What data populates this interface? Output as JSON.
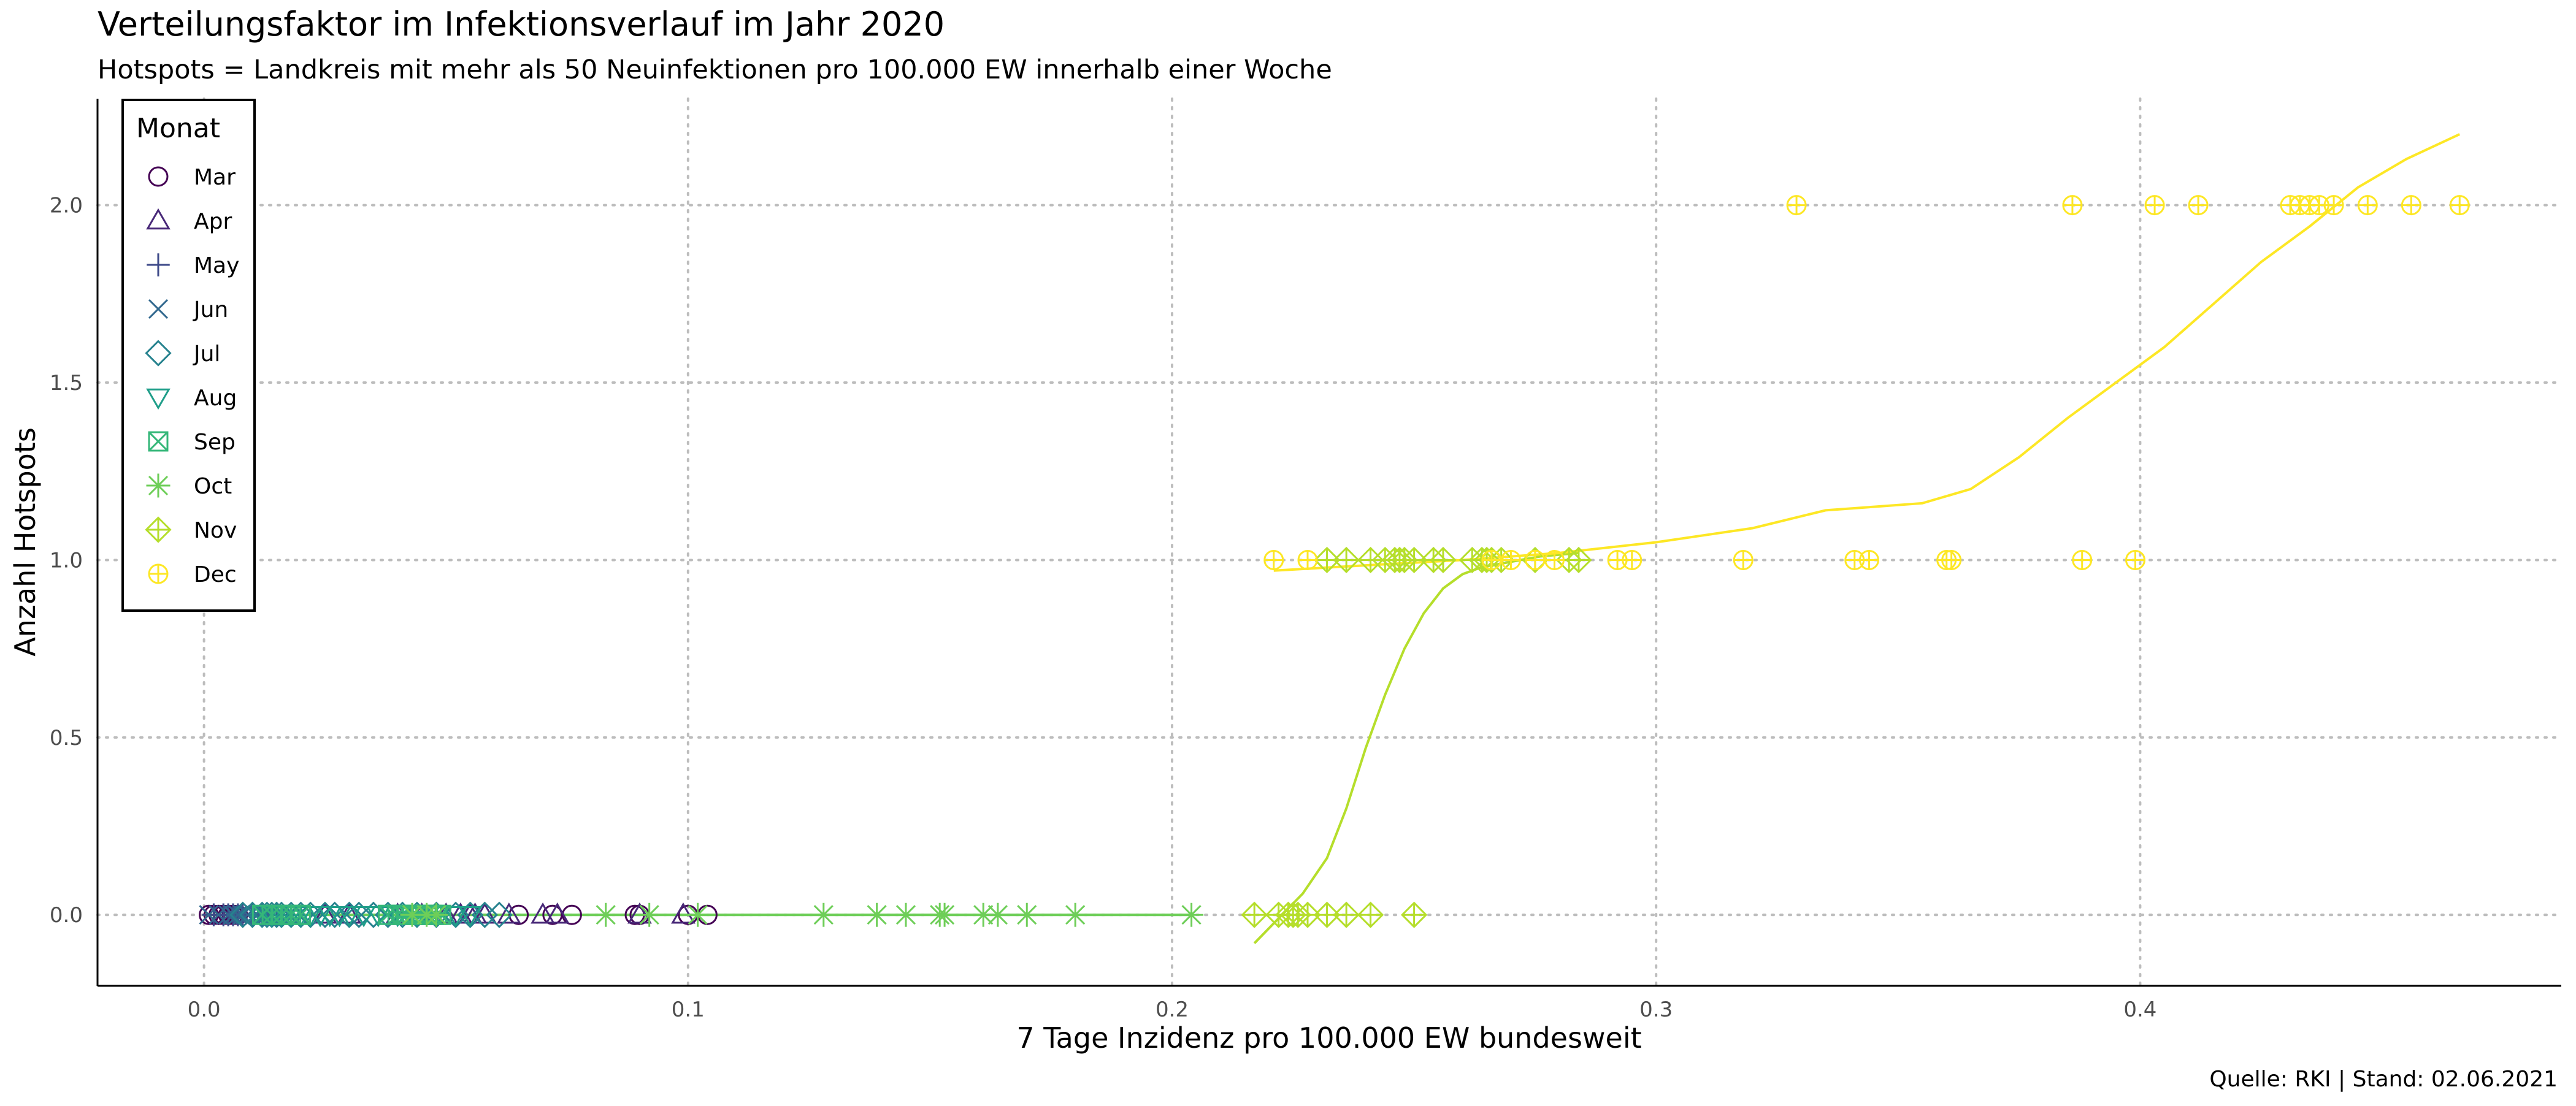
{
  "chart_data": {
    "type": "scatter",
    "title": "Verteilungsfaktor im Infektionsverlauf im Jahr 2020",
    "subtitle": "Hotspots = Landkreis mit mehr als 50 Neuinfektionen pro 100.000 EW innerhalb einer Woche",
    "xlabel": "7 Tage Inzidenz pro 100.000 EW bundesweit",
    "ylabel": "Anzahl Hotspots",
    "caption": "Quelle: RKI | Stand: 02.06.2021",
    "xlim": [
      -0.022,
      0.487
    ],
    "ylim": [
      -0.2,
      2.3
    ],
    "x_ticks": [
      {
        "v": 0.0,
        "label": "0.0"
      },
      {
        "v": 0.1,
        "label": "0.1"
      },
      {
        "v": 0.2,
        "label": "0.2"
      },
      {
        "v": 0.3,
        "label": "0.3"
      },
      {
        "v": 0.4,
        "label": "0.4"
      }
    ],
    "y_ticks": [
      {
        "v": 0.0,
        "label": "0.0"
      },
      {
        "v": 0.5,
        "label": "0.5"
      },
      {
        "v": 1.0,
        "label": "1.0"
      },
      {
        "v": 1.5,
        "label": "1.5"
      },
      {
        "v": 2.0,
        "label": "2.0"
      }
    ],
    "grid": "major, dotted",
    "legend": {
      "title": "Monat",
      "placement": "top-left"
    },
    "series": [
      {
        "name": "Mar",
        "shape": "circle",
        "color": "#440154",
        "points": [
          [
            0.001,
            0
          ],
          [
            0.002,
            0
          ],
          [
            0.003,
            0
          ],
          [
            0.004,
            0
          ],
          [
            0.005,
            0
          ],
          [
            0.006,
            0
          ],
          [
            0.007,
            0
          ],
          [
            0.065,
            0
          ],
          [
            0.072,
            0
          ],
          [
            0.076,
            0
          ],
          [
            0.089,
            0
          ],
          [
            0.09,
            0
          ],
          [
            0.1,
            0
          ],
          [
            0.104,
            0
          ]
        ]
      },
      {
        "name": "Apr",
        "shape": "triangle",
        "color": "#482878",
        "points": [
          [
            0.025,
            0
          ],
          [
            0.03,
            0
          ],
          [
            0.04,
            0
          ],
          [
            0.045,
            0
          ],
          [
            0.05,
            0
          ],
          [
            0.053,
            0
          ],
          [
            0.055,
            0
          ],
          [
            0.056,
            0
          ],
          [
            0.058,
            0
          ],
          [
            0.063,
            0
          ],
          [
            0.07,
            0
          ],
          [
            0.073,
            0
          ],
          [
            0.09,
            0
          ],
          [
            0.099,
            0
          ]
        ]
      },
      {
        "name": "May",
        "shape": "plus",
        "color": "#3e4a89",
        "points": [
          [
            0.002,
            0
          ],
          [
            0.004,
            0
          ],
          [
            0.005,
            0
          ],
          [
            0.006,
            0
          ],
          [
            0.007,
            0
          ],
          [
            0.008,
            0
          ],
          [
            0.01,
            0
          ],
          [
            0.012,
            0
          ],
          [
            0.015,
            0
          ]
        ]
      },
      {
        "name": "Jun",
        "shape": "cross",
        "color": "#31688e",
        "points": [
          [
            0.001,
            0
          ],
          [
            0.003,
            0
          ],
          [
            0.005,
            0
          ],
          [
            0.006,
            0
          ],
          [
            0.007,
            0
          ],
          [
            0.008,
            0
          ],
          [
            0.009,
            0
          ],
          [
            0.011,
            0
          ],
          [
            0.012,
            0
          ],
          [
            0.013,
            0
          ]
        ]
      },
      {
        "name": "Jul",
        "shape": "diamond",
        "color": "#26828e",
        "points": [
          [
            0.008,
            0
          ],
          [
            0.01,
            0
          ],
          [
            0.012,
            0
          ],
          [
            0.013,
            0
          ],
          [
            0.014,
            0
          ],
          [
            0.015,
            0
          ],
          [
            0.016,
            0
          ],
          [
            0.018,
            0
          ],
          [
            0.02,
            0
          ],
          [
            0.022,
            0
          ],
          [
            0.025,
            0
          ],
          [
            0.027,
            0
          ],
          [
            0.03,
            0
          ],
          [
            0.032,
            0
          ],
          [
            0.035,
            0
          ],
          [
            0.038,
            0
          ],
          [
            0.041,
            0
          ],
          [
            0.044,
            0
          ],
          [
            0.048,
            0
          ],
          [
            0.052,
            0
          ],
          [
            0.055,
            0
          ],
          [
            0.058,
            0
          ],
          [
            0.061,
            0
          ]
        ]
      },
      {
        "name": "Aug",
        "shape": "triangle-down",
        "color": "#1f9e89",
        "points": [
          [
            0.014,
            0
          ],
          [
            0.016,
            0
          ],
          [
            0.018,
            0
          ],
          [
            0.02,
            0
          ],
          [
            0.022,
            0
          ],
          [
            0.024,
            0
          ],
          [
            0.026,
            0
          ],
          [
            0.028,
            0
          ],
          [
            0.03,
            0
          ],
          [
            0.033,
            0
          ],
          [
            0.036,
            0
          ],
          [
            0.04,
            0
          ],
          [
            0.044,
            0
          ],
          [
            0.048,
            0
          ],
          [
            0.052,
            0
          ],
          [
            0.055,
            0
          ]
        ]
      },
      {
        "name": "Sep",
        "shape": "square-cross",
        "color": "#35b779",
        "points": [
          [
            0.012,
            0
          ],
          [
            0.014,
            0
          ],
          [
            0.016,
            0
          ],
          [
            0.018,
            0
          ],
          [
            0.02,
            0
          ],
          [
            0.038,
            0
          ],
          [
            0.04,
            0
          ],
          [
            0.041,
            0
          ],
          [
            0.042,
            0
          ],
          [
            0.043,
            0
          ],
          [
            0.044,
            0
          ],
          [
            0.045,
            0
          ],
          [
            0.046,
            0
          ],
          [
            0.047,
            0
          ],
          [
            0.048,
            0
          ],
          [
            0.049,
            0
          ]
        ]
      },
      {
        "name": "Oct",
        "shape": "asterisk",
        "color": "#6ece58",
        "points": [
          [
            0.043,
            0
          ],
          [
            0.046,
            0
          ],
          [
            0.048,
            0
          ],
          [
            0.083,
            0
          ],
          [
            0.092,
            0
          ],
          [
            0.102,
            0
          ],
          [
            0.128,
            0
          ],
          [
            0.139,
            0
          ],
          [
            0.145,
            0
          ],
          [
            0.152,
            0
          ],
          [
            0.153,
            0
          ],
          [
            0.161,
            0
          ],
          [
            0.164,
            0
          ],
          [
            0.17,
            0
          ],
          [
            0.18,
            0
          ],
          [
            0.204,
            0
          ]
        ]
      },
      {
        "name": "Nov",
        "shape": "diamond-plus",
        "color": "#b5de2b",
        "points": [
          [
            0.217,
            0
          ],
          [
            0.222,
            0
          ],
          [
            0.224,
            0
          ],
          [
            0.225,
            0
          ],
          [
            0.226,
            0
          ],
          [
            0.228,
            0
          ],
          [
            0.232,
            0
          ],
          [
            0.236,
            0
          ],
          [
            0.241,
            0
          ],
          [
            0.25,
            0
          ],
          [
            0.232,
            1
          ],
          [
            0.236,
            1
          ],
          [
            0.241,
            1
          ],
          [
            0.244,
            1
          ],
          [
            0.246,
            1
          ],
          [
            0.247,
            1
          ],
          [
            0.248,
            1
          ],
          [
            0.25,
            1
          ],
          [
            0.254,
            1
          ],
          [
            0.256,
            1
          ],
          [
            0.262,
            1
          ],
          [
            0.264,
            1
          ],
          [
            0.265,
            1
          ],
          [
            0.266,
            1
          ],
          [
            0.268,
            1
          ],
          [
            0.275,
            1
          ],
          [
            0.282,
            1
          ],
          [
            0.284,
            1
          ]
        ]
      },
      {
        "name": "Dec",
        "shape": "circle-plus",
        "color": "#fde725",
        "points": [
          [
            0.221,
            1
          ],
          [
            0.228,
            1
          ],
          [
            0.266,
            1
          ],
          [
            0.27,
            1
          ],
          [
            0.275,
            1
          ],
          [
            0.279,
            1
          ],
          [
            0.292,
            1
          ],
          [
            0.295,
            1
          ],
          [
            0.318,
            1
          ],
          [
            0.341,
            1
          ],
          [
            0.344,
            1
          ],
          [
            0.36,
            1
          ],
          [
            0.361,
            1
          ],
          [
            0.388,
            1
          ],
          [
            0.399,
            1
          ],
          [
            0.329,
            2
          ],
          [
            0.386,
            2
          ],
          [
            0.403,
            2
          ],
          [
            0.412,
            2
          ],
          [
            0.431,
            2
          ],
          [
            0.433,
            2
          ],
          [
            0.435,
            2
          ],
          [
            0.437,
            2
          ],
          [
            0.44,
            2
          ],
          [
            0.447,
            2
          ],
          [
            0.456,
            2
          ],
          [
            0.466,
            2
          ]
        ]
      }
    ],
    "trend_lines": [
      {
        "name": "Oct",
        "color": "#6ece58",
        "points": [
          [
            0.0,
            0.0
          ],
          [
            0.05,
            0.0
          ],
          [
            0.1,
            0.0
          ],
          [
            0.15,
            0.0
          ],
          [
            0.204,
            0.0
          ]
        ]
      },
      {
        "name": "Nov",
        "color": "#b5de2b",
        "points": [
          [
            0.217,
            -0.08
          ],
          [
            0.222,
            -0.01
          ],
          [
            0.227,
            0.06
          ],
          [
            0.232,
            0.16
          ],
          [
            0.236,
            0.3
          ],
          [
            0.24,
            0.47
          ],
          [
            0.244,
            0.62
          ],
          [
            0.248,
            0.75
          ],
          [
            0.252,
            0.85
          ],
          [
            0.256,
            0.92
          ],
          [
            0.26,
            0.96
          ],
          [
            0.264,
            0.98
          ],
          [
            0.268,
            0.99
          ],
          [
            0.276,
            1.01
          ],
          [
            0.284,
            1.02
          ]
        ]
      },
      {
        "name": "Dec",
        "color": "#fde725",
        "points": [
          [
            0.221,
            0.97
          ],
          [
            0.24,
            0.985
          ],
          [
            0.26,
            1.0
          ],
          [
            0.28,
            1.02
          ],
          [
            0.3,
            1.05
          ],
          [
            0.32,
            1.09
          ],
          [
            0.335,
            1.14
          ],
          [
            0.345,
            1.15
          ],
          [
            0.355,
            1.16
          ],
          [
            0.365,
            1.2
          ],
          [
            0.375,
            1.29
          ],
          [
            0.385,
            1.4
          ],
          [
            0.395,
            1.5
          ],
          [
            0.405,
            1.6
          ],
          [
            0.415,
            1.72
          ],
          [
            0.425,
            1.84
          ],
          [
            0.435,
            1.94
          ],
          [
            0.445,
            2.05
          ],
          [
            0.455,
            2.13
          ],
          [
            0.466,
            2.2
          ]
        ]
      }
    ]
  }
}
